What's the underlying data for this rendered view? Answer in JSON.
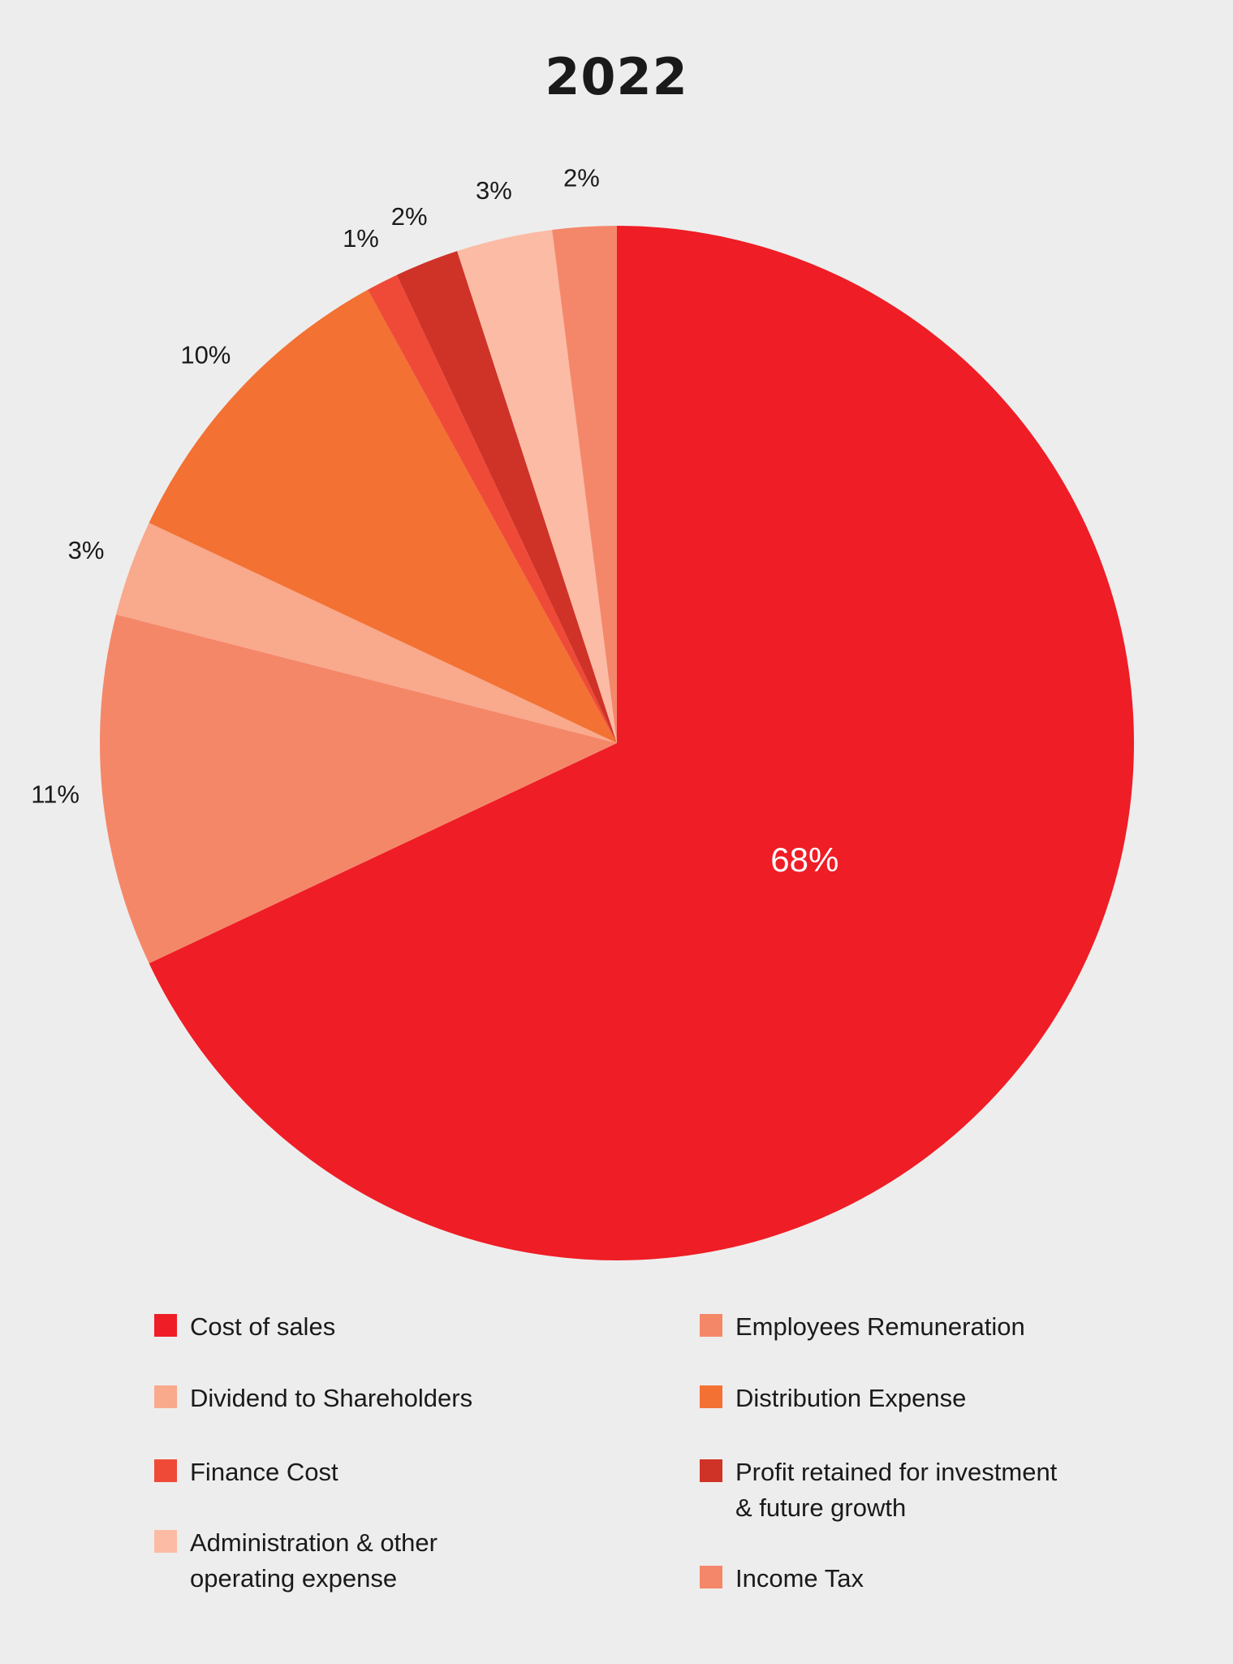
{
  "chart_data": {
    "type": "pie",
    "title": "2022",
    "slices": [
      {
        "name": "Cost of sales",
        "value": 68,
        "label": "68%",
        "color": "#ef1d25"
      },
      {
        "name": "Employees Remuneration",
        "value": 11,
        "label": "11%",
        "color": "#f58769"
      },
      {
        "name": "Dividend to Shareholders",
        "value": 3,
        "label": "3%",
        "color": "#f9a98c"
      },
      {
        "name": "Distribution Expense",
        "value": 10,
        "label": "10%",
        "color": "#f37133"
      },
      {
        "name": "Finance Cost",
        "value": 1,
        "label": "1%",
        "color": "#ef4a38"
      },
      {
        "name": "Profit retained for investment & future growth",
        "value": 2,
        "label": "2%",
        "color": "#cf3327"
      },
      {
        "name": "Administration & other operating expense",
        "value": 3,
        "label": "3%",
        "color": "#fcbba5"
      },
      {
        "name": "Income Tax",
        "value": 2,
        "label": "2%",
        "color": "#f4876a"
      }
    ]
  },
  "legend": [
    {
      "label": "Cost of sales",
      "color": "#ef1d25"
    },
    {
      "label": "Employees Remuneration",
      "color": "#f58769"
    },
    {
      "label": "Dividend to Shareholders",
      "color": "#f9a98c"
    },
    {
      "label": "Distribution Expense",
      "color": "#f37133"
    },
    {
      "label": "Finance Cost",
      "color": "#ef4a38"
    },
    {
      "label": "Profit retained for investment\n& future growth",
      "color": "#cf3327"
    },
    {
      "label": "Administration & other\noperating expense",
      "color": "#fcbba5"
    },
    {
      "label": "Income Tax",
      "color": "#f4876a"
    }
  ]
}
